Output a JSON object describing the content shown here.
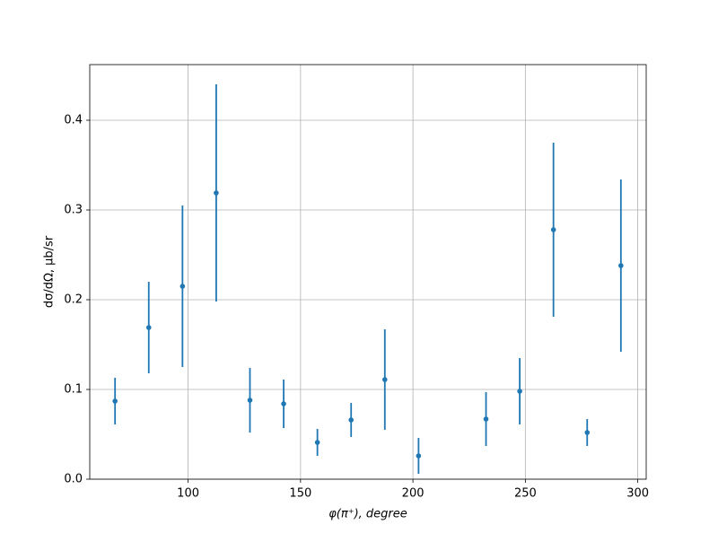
{
  "chart_data": {
    "type": "errorbar",
    "x_label": "φ(π⁺), degree",
    "y_label": "dσ/dΩ, μb/sr",
    "x": [
      67.5,
      82.5,
      97.5,
      112.5,
      127.5,
      142.5,
      157.5,
      172.5,
      187.5,
      202.5,
      232.5,
      247.5,
      262.5,
      277.5,
      292.5
    ],
    "values": [
      0.087,
      0.169,
      0.215,
      0.319,
      0.088,
      0.084,
      0.041,
      0.066,
      0.111,
      0.026,
      0.067,
      0.098,
      0.278,
      0.052,
      0.238
    ],
    "errors": [
      0.026,
      0.051,
      0.09,
      0.121,
      0.036,
      0.027,
      0.015,
      0.019,
      0.056,
      0.02,
      0.03,
      0.037,
      0.097,
      0.015,
      0.096
    ],
    "color": "#1f77b4",
    "xlim": [
      56.25,
      303.75
    ],
    "xticks": [
      100,
      150,
      200,
      250,
      300
    ],
    "ylim": [
      0,
      0.462
    ],
    "yticks": [
      {
        "value": 0,
        "label": "0.0"
      },
      0.1,
      0.2,
      0.3,
      0.4
    ],
    "grid": true
  }
}
